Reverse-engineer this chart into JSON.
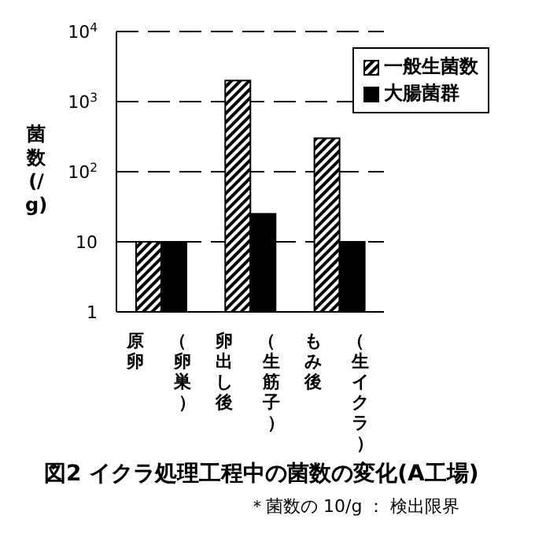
{
  "chart_data": {
    "type": "bar",
    "title": "図2 イクラ処理工程中の菌数の変化(A工場)",
    "ylabel": "菌数 (/g)",
    "annotations": [
      "＊菌数の 10/g ： 検出限界"
    ],
    "categories": [
      "原卵（卵巣）",
      "卵出し後（生筋子）",
      "もみ後（生イクラ）"
    ],
    "series": [
      {
        "name": "一般生菌数",
        "color": "#000000",
        "values": [
          10,
          2000,
          300
        ]
      },
      {
        "name": "大腸菌群",
        "color": "#000000",
        "values": [
          10,
          25,
          10
        ]
      }
    ],
    "log": true,
    "ylim": [
      1,
      10000
    ],
    "yticks": [
      1,
      10,
      {
        "value": 100,
        "label": "10$^{2}$"
      },
      {
        "value": 1000,
        "label": "10$^{3}$"
      },
      {
        "value": 10000,
        "label": "10$^{4}$"
      }
    ],
    "grid": "y",
    "legend": "top right"
  }
}
